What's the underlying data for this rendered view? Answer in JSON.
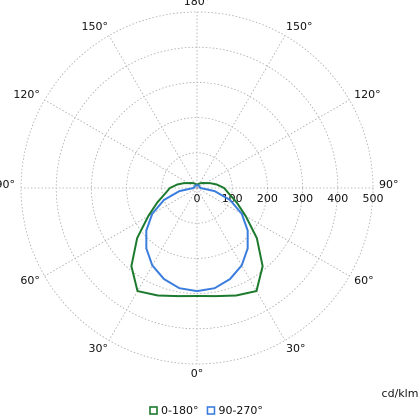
{
  "chart_data": {
    "type": "polar",
    "x": [
      0,
      10,
      20,
      30,
      40,
      50,
      60,
      70,
      80,
      90,
      100,
      110,
      120,
      130,
      140,
      150,
      160,
      170,
      180
    ],
    "series": [
      {
        "name": "0-180°",
        "color": "#1b7a2e",
        "values": [
          307,
          312,
          325,
          338,
          290,
          222,
          160,
          120,
          92,
          77,
          57,
          40,
          28,
          22,
          18,
          15,
          12,
          10,
          8
        ]
      },
      {
        "name": "90-270°",
        "color": "#3b7ddd",
        "values": [
          293,
          289,
          275,
          254,
          224,
          188,
          147,
          100,
          51,
          10,
          8,
          8,
          8,
          8,
          8,
          8,
          8,
          8,
          8
        ]
      }
    ],
    "rlim": [
      0,
      500
    ],
    "rticks": [
      0,
      100,
      200,
      300,
      400,
      500
    ],
    "xticks": [
      {
        "value": 0,
        "label": "0°"
      },
      {
        "value": 30,
        "label": "30°"
      },
      {
        "value": 60,
        "label": "60°"
      },
      {
        "value": 90,
        "label": "90°"
      },
      {
        "value": 120,
        "label": "120°"
      },
      {
        "value": 150,
        "label": "150°"
      },
      {
        "value": 180,
        "label": "180°"
      }
    ],
    "unit_label": "cd/klm",
    "grid": true
  }
}
